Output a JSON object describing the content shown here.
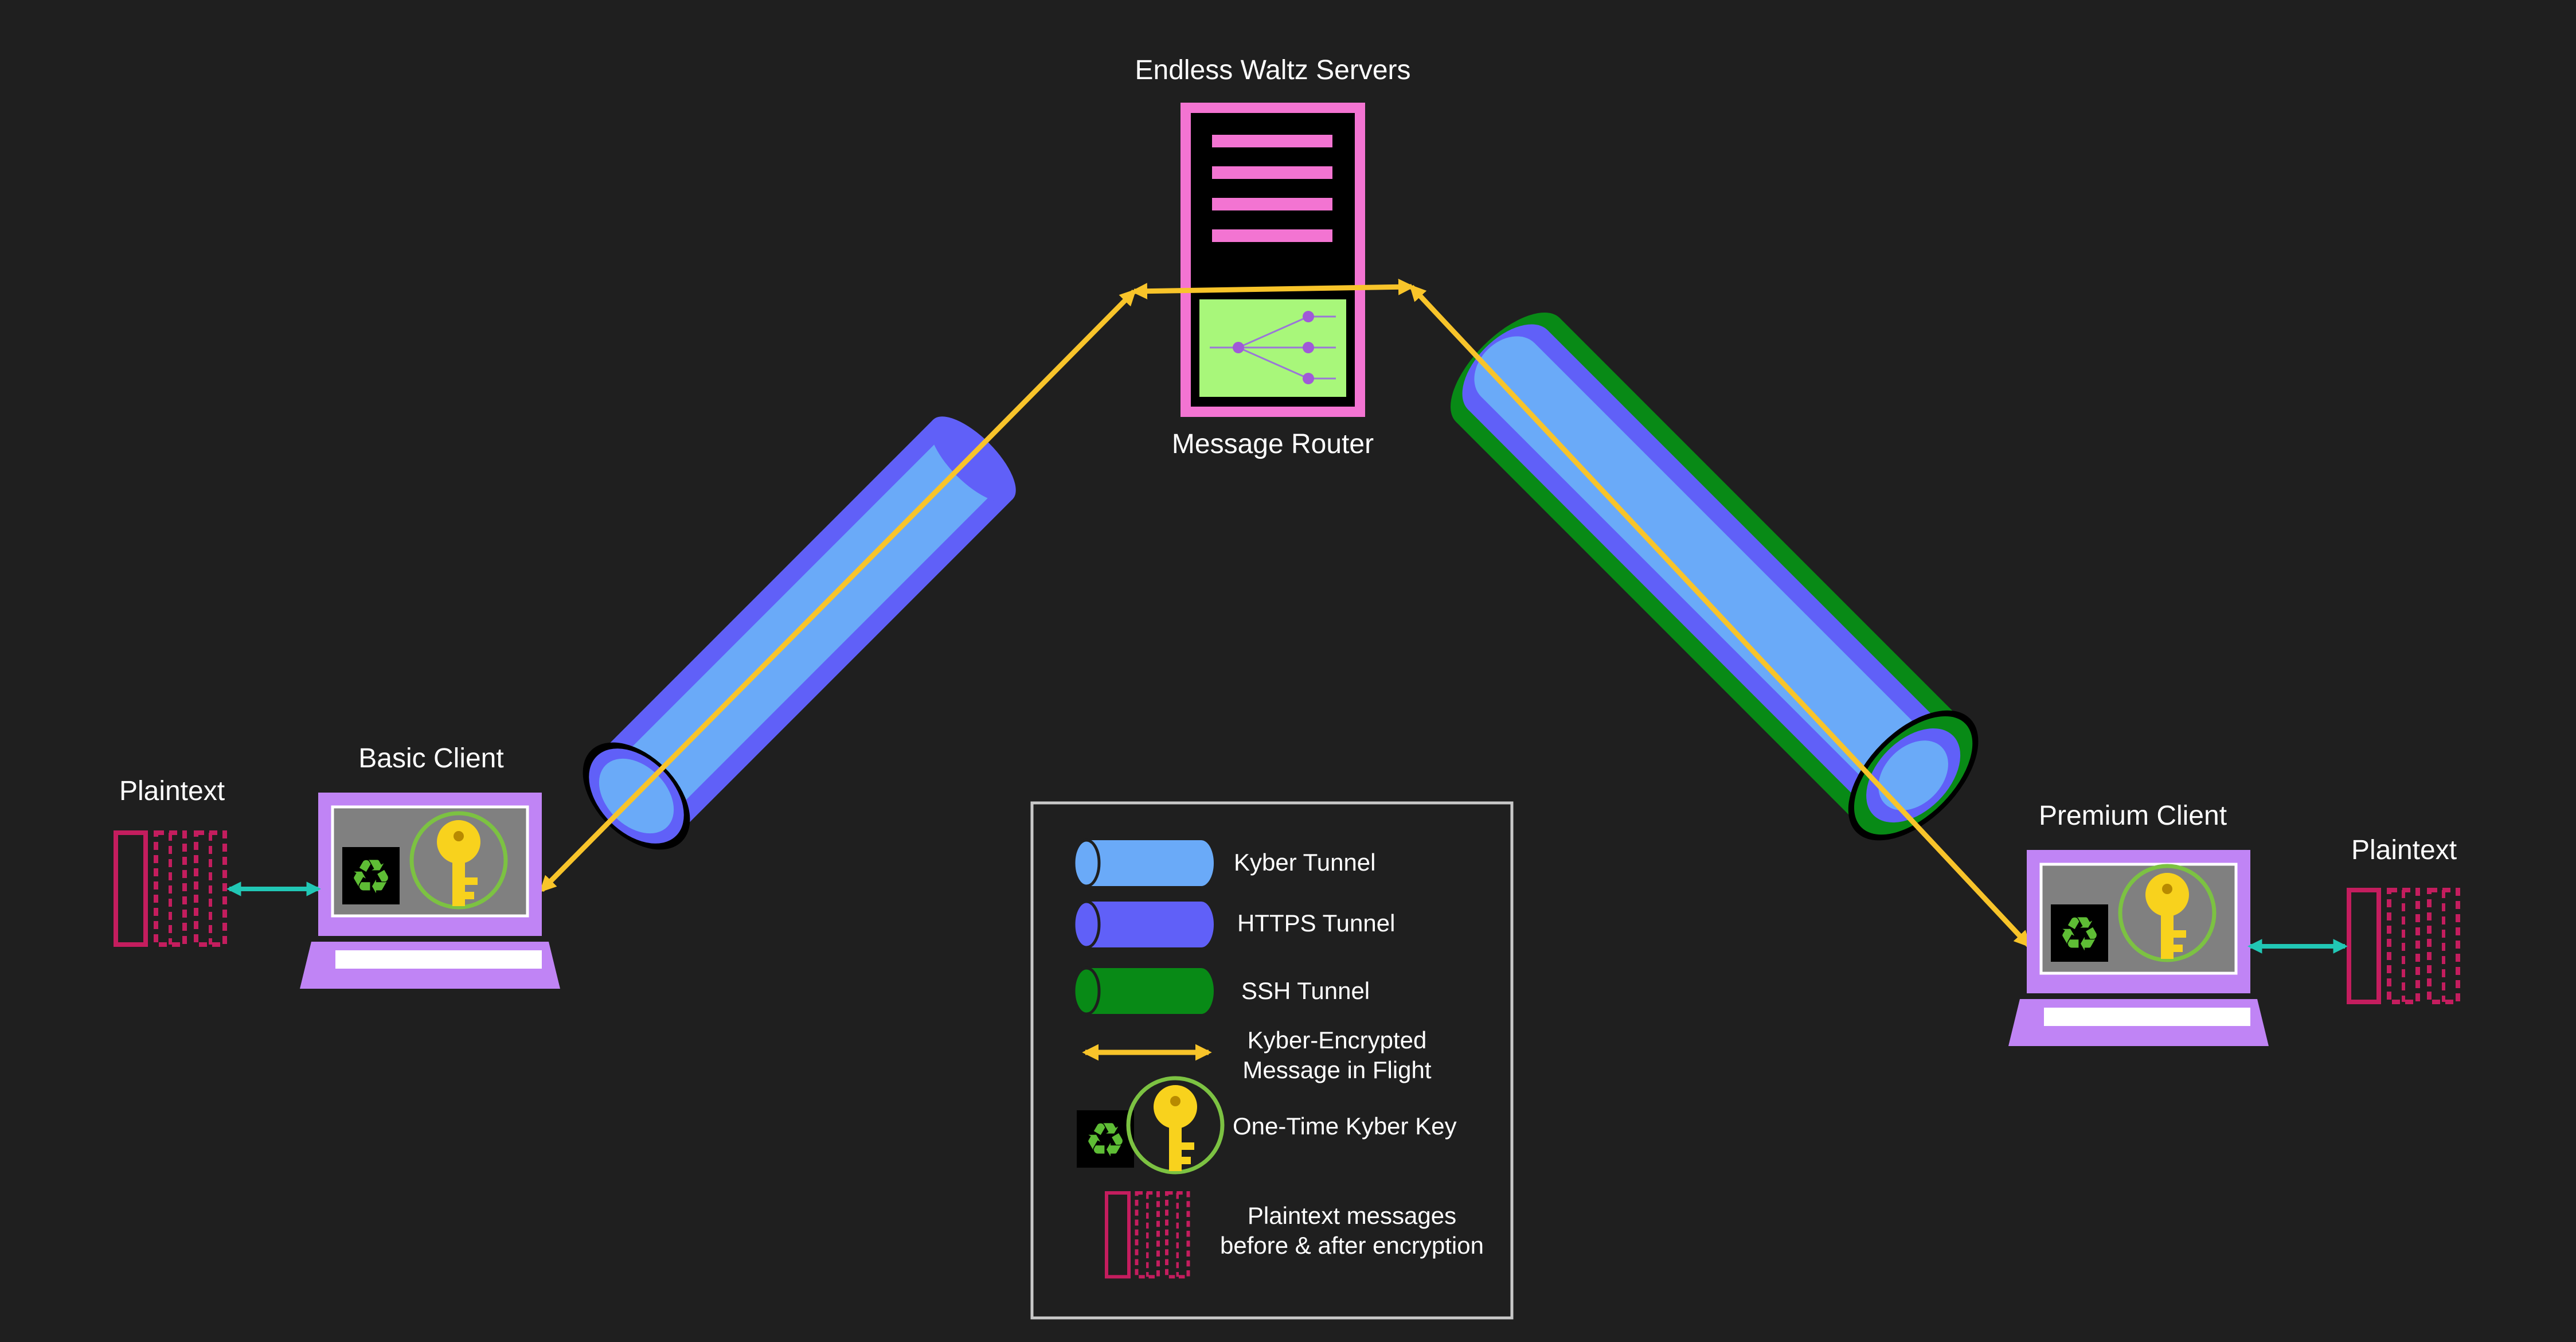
{
  "labels": {
    "servers": "Endless Waltz Servers",
    "router": "Message Router",
    "basic_client": "Basic Client",
    "premium_client": "Premium Client",
    "plaintext_left": "Plaintext",
    "plaintext_right": "Plaintext"
  },
  "legend": {
    "kyber": "Kyber Tunnel",
    "https": "HTTPS Tunnel",
    "ssh": "SSH Tunnel",
    "message_line1": "Kyber-Encrypted",
    "message_line2": "Message in Flight",
    "key": "One-Time Kyber Key",
    "plaintext_line1": "Plaintext messages",
    "plaintext_line2": "before & after encryption"
  },
  "colors": {
    "background": "#1f1f1f",
    "kyber_tunnel": "#6aaaf8",
    "https_tunnel": "#6060f8",
    "ssh_tunnel": "#088a16",
    "message_arrow": "#f8c42a",
    "plaintext": "#c41d5e",
    "server": "#f374d2",
    "router_panel": "#a8f77a",
    "laptop": "#c084f5",
    "local_link": "#21c7b5",
    "key": "#f8d21d",
    "recycle": "#5ebd35"
  }
}
